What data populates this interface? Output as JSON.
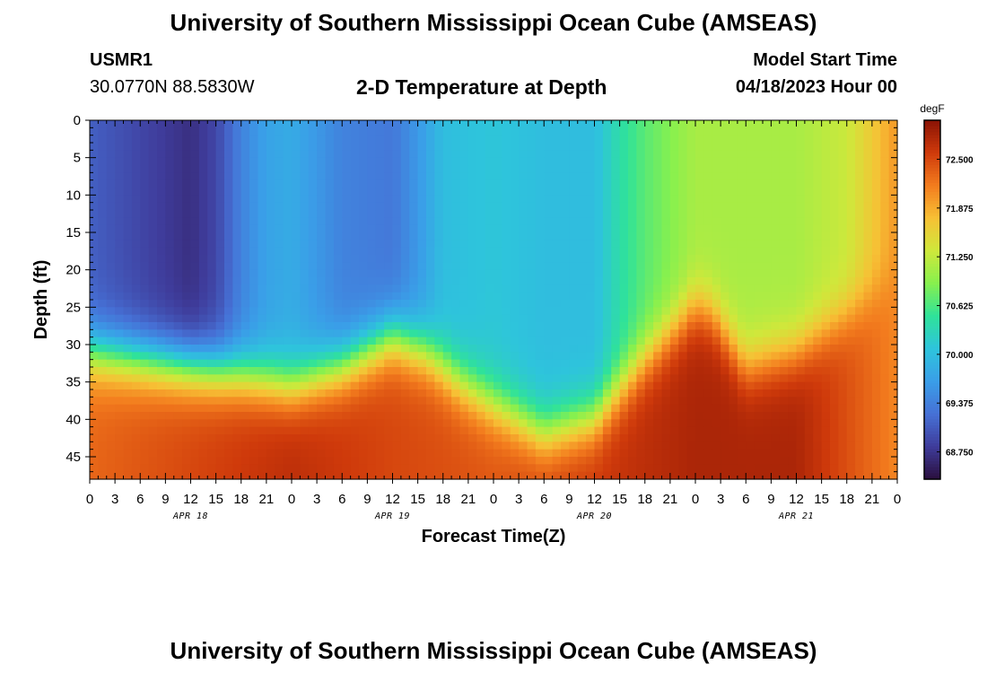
{
  "header": {
    "title": "University of Southern Mississippi Ocean Cube (AMSEAS)",
    "station": "USMR1",
    "coords": "30.0770N  88.5830W",
    "plot_title": "2-D Temperature at Depth",
    "model_start_label": "Model Start Time",
    "model_start_date": "04/18/2023 Hour 00"
  },
  "footer": {
    "title": "University of Southern Mississippi Ocean Cube (AMSEAS)"
  },
  "chart_data": {
    "type": "heatmap",
    "title": "2-D Temperature at Depth",
    "xlabel": "Forecast Time(Z)",
    "ylabel": "Depth (ft)",
    "x_ticks": [
      "0",
      "3",
      "6",
      "9",
      "12",
      "15",
      "18",
      "21",
      "0",
      "3",
      "6",
      "9",
      "12",
      "15",
      "18",
      "21",
      "0",
      "3",
      "6",
      "9",
      "12",
      "15",
      "18",
      "21",
      "0",
      "3",
      "6",
      "9",
      "12",
      "15",
      "18",
      "21",
      "0"
    ],
    "x_range_hours": [
      0,
      96
    ],
    "date_labels": [
      {
        "text": "APR 18",
        "hour": 12
      },
      {
        "text": "APR 19",
        "hour": 36
      },
      {
        "text": "APR 20",
        "hour": 60
      },
      {
        "text": "APR 21",
        "hour": 84
      }
    ],
    "y_ticks": [
      0,
      5,
      10,
      15,
      20,
      25,
      30,
      35,
      40,
      45
    ],
    "y_range_ft": [
      0,
      48
    ],
    "colorbar": {
      "unit": "degF",
      "range": [
        68.4,
        73.0
      ],
      "tick_labels": [
        "72.500",
        "71.875",
        "71.250",
        "70.625",
        "70.000",
        "69.375",
        "68.750"
      ],
      "tick_values": [
        72.5,
        71.875,
        71.25,
        70.625,
        70.0,
        69.375,
        68.75
      ],
      "colors": [
        "#2a0f3e",
        "#3f3c9b",
        "#4671d6",
        "#3a9ee8",
        "#2ec4dc",
        "#2fe29a",
        "#87f04e",
        "#cfe83b",
        "#f7c035",
        "#f37c1e",
        "#cf3a0b",
        "#8a1305"
      ]
    },
    "surface_temp_degF": [
      [
        0,
        69.1
      ],
      [
        6,
        68.9
      ],
      [
        12,
        68.7
      ],
      [
        15,
        68.9
      ],
      [
        18,
        69.4
      ],
      [
        21,
        69.7
      ],
      [
        24,
        69.8
      ],
      [
        30,
        69.4
      ],
      [
        36,
        69.3
      ],
      [
        39,
        69.6
      ],
      [
        42,
        70.0
      ],
      [
        48,
        70.1
      ],
      [
        54,
        70.0
      ],
      [
        60,
        70.0
      ],
      [
        63,
        70.4
      ],
      [
        66,
        70.7
      ],
      [
        72,
        71.1
      ],
      [
        78,
        71.1
      ],
      [
        84,
        71.1
      ],
      [
        90,
        71.3
      ],
      [
        96,
        72.0
      ]
    ],
    "thermocline_depth_ft": [
      [
        0,
        31
      ],
      [
        6,
        32
      ],
      [
        12,
        33
      ],
      [
        18,
        34
      ],
      [
        24,
        35.5
      ],
      [
        30,
        33
      ],
      [
        36,
        29
      ],
      [
        40,
        31
      ],
      [
        44,
        35
      ],
      [
        48,
        38
      ],
      [
        54,
        42
      ],
      [
        60,
        40
      ],
      [
        66,
        32
      ],
      [
        72,
        25
      ],
      [
        74,
        26
      ],
      [
        78,
        33
      ],
      [
        84,
        31
      ],
      [
        90,
        26
      ],
      [
        96,
        21
      ]
    ],
    "bottom_temp_degF": [
      [
        0,
        72.3
      ],
      [
        12,
        72.5
      ],
      [
        24,
        72.7
      ],
      [
        36,
        72.5
      ],
      [
        48,
        72.4
      ],
      [
        60,
        72.6
      ],
      [
        72,
        72.8
      ],
      [
        84,
        72.8
      ],
      [
        96,
        72.1
      ]
    ]
  }
}
